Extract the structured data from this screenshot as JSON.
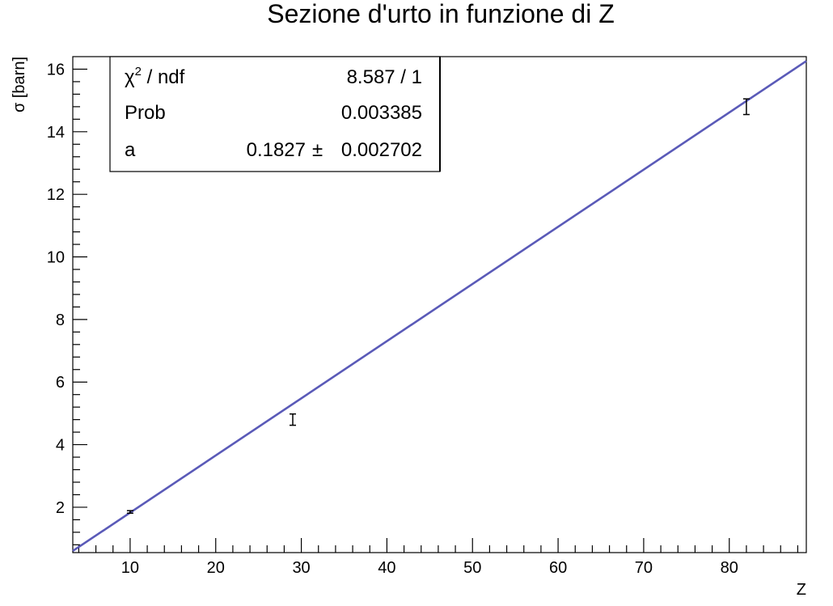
{
  "chart_data": {
    "type": "scatter",
    "title": "Sezione d'urto in funzione di Z",
    "xlabel": "Z",
    "ylabel": "σ [barn]",
    "xlim": [
      3.3,
      89
    ],
    "ylim": [
      0.55,
      16.4
    ],
    "x_ticks": [
      10,
      20,
      30,
      40,
      50,
      60,
      70,
      80
    ],
    "y_ticks": [
      2,
      4,
      6,
      8,
      10,
      12,
      14,
      16
    ],
    "points": [
      {
        "x": 10,
        "y": 1.85,
        "err": 0.04
      },
      {
        "x": 29,
        "y": 4.8,
        "err": 0.18
      },
      {
        "x": 82,
        "y": 14.8,
        "err": 0.25
      }
    ],
    "fit": {
      "function": "a*Z",
      "a": 0.1827,
      "color": "#5a5ab8"
    },
    "stats_box": {
      "rows": [
        {
          "label_main": "χ",
          "label_sup": "2",
          "label_rest": " / ndf",
          "value": "8.587 / 1"
        },
        {
          "label": "Prob",
          "value": "0.003385"
        },
        {
          "label": "a",
          "value": "0.1827",
          "pm": "±",
          "error": "0.002702"
        }
      ]
    }
  }
}
